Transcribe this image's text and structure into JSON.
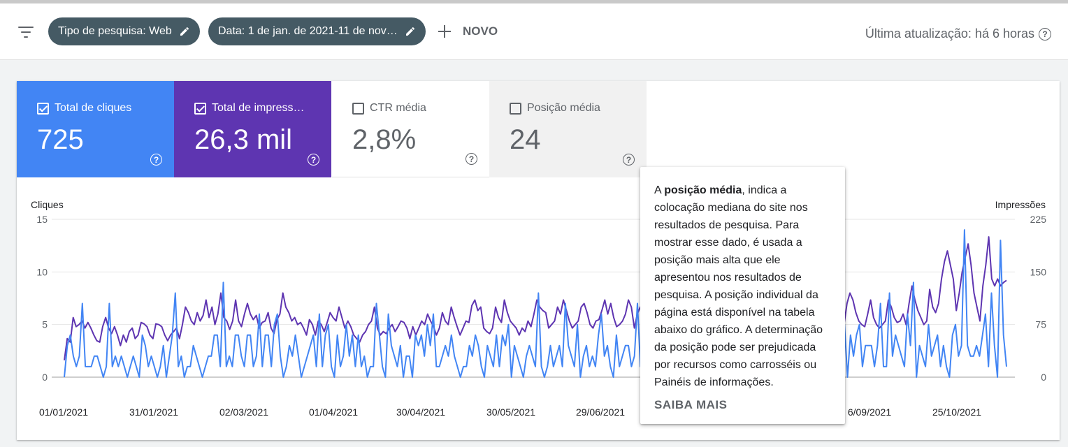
{
  "toolbar": {
    "filter_icon": "filter-list-icon",
    "chips": [
      {
        "label": "Tipo de pesquisa: Web",
        "icon": "pencil-icon"
      },
      {
        "label": "Data: 1 de jan. de 2021-11 de nov…",
        "icon": "pencil-icon"
      }
    ],
    "new_label": "NOVO",
    "last_update": "Última atualização: há 6 horas",
    "help_glyph": "?"
  },
  "metrics": [
    {
      "label": "Total de cliques",
      "value": "725",
      "checked": true,
      "color": "#4285f4",
      "text_color": "#ffffff"
    },
    {
      "label": "Total de impress…",
      "value": "26,3 mil",
      "checked": true,
      "color": "#5e35b1",
      "text_color": "#ffffff"
    },
    {
      "label": "CTR média",
      "value": "2,8%",
      "checked": false,
      "color": "#ffffff",
      "text_color": "#5f6368"
    },
    {
      "label": "Posição média",
      "value": "24",
      "checked": false,
      "color": "#f1f1f1",
      "text_color": "#5f6368"
    }
  ],
  "tooltip": {
    "prefix": "A ",
    "bold": "posição média",
    "line1_rest": ", indica a",
    "lines": [
      "colocação mediana do site nos",
      "resultados de pesquisa. Para",
      "mostrar esse dado, é usada a",
      "posição mais alta que ele",
      "apresentou nos resultados de",
      "pesquisa. A posição individual da",
      "página está disponível na tabela",
      "abaixo do gráfico. A determinação",
      "da posição pode ser prejudicada",
      "por recursos como carrosséis ou",
      "Painéis de informações."
    ],
    "more": "SAIBA MAIS"
  },
  "chart_data": {
    "type": "line",
    "ylabel": "Cliques",
    "y2label": "Impressões",
    "ylim": [
      0,
      15
    ],
    "y2lim": [
      0,
      225
    ],
    "yticks": [
      "0",
      "5",
      "10",
      "15"
    ],
    "y2ticks": [
      "0",
      "75",
      "150",
      "225"
    ],
    "xtick_labels": [
      "01/01/2021",
      "31/01/2021",
      "02/03/2021",
      "01/04/2021",
      "30/04/2021",
      "30/05/2021",
      "29/06/2021",
      "",
      "",
      "6/09/2021",
      "25/10/2021"
    ],
    "grid": true,
    "series": [
      {
        "name": "Cliques",
        "axis": "left",
        "color": "#4285f4",
        "values": [
          0,
          3,
          4,
          2,
          1,
          2,
          7,
          1,
          1,
          1,
          2,
          2,
          1,
          0,
          1,
          7,
          1,
          2,
          1,
          2,
          1,
          0,
          1,
          2,
          1,
          0,
          4,
          3,
          1,
          2,
          1,
          0,
          1,
          3,
          0,
          2,
          4,
          8,
          1,
          2,
          0,
          1,
          1,
          3,
          2,
          1,
          0,
          1,
          2,
          2,
          4,
          4,
          1,
          9,
          1,
          2,
          1,
          4,
          4,
          2,
          1,
          4,
          4,
          1,
          2,
          6,
          1,
          4,
          4,
          1,
          5,
          6,
          2,
          0,
          1,
          3,
          2,
          4,
          2,
          0,
          1,
          2,
          3,
          4,
          1,
          6,
          1,
          4,
          5,
          1,
          0,
          4,
          1,
          2,
          5,
          2,
          4,
          1,
          4,
          1,
          2,
          0,
          1,
          1,
          7,
          4,
          1,
          0,
          6,
          3,
          2,
          1,
          3,
          0,
          2,
          2,
          0,
          4,
          3,
          4,
          2,
          5,
          3,
          6,
          1,
          1,
          2,
          3,
          2,
          4,
          2,
          1,
          0,
          1,
          1,
          3,
          2,
          4,
          3,
          1,
          0,
          3,
          2,
          1,
          4,
          1,
          4,
          3,
          5,
          0,
          3,
          2,
          1,
          0,
          2,
          3,
          2,
          1,
          8,
          1,
          0,
          1,
          3,
          1,
          2,
          3,
          1,
          7,
          3,
          2,
          1,
          5,
          0,
          2,
          3,
          1,
          2,
          1,
          4,
          6,
          2,
          3,
          1,
          0,
          4,
          1,
          2,
          3,
          3,
          1,
          2,
          7,
          1,
          1,
          4,
          1,
          0,
          2,
          3,
          2,
          2,
          5,
          1,
          3,
          1,
          2,
          7,
          2,
          5,
          1,
          0,
          3,
          2,
          4,
          6,
          3,
          1,
          2,
          3,
          2,
          4,
          1,
          7,
          3,
          2,
          0,
          1,
          3,
          2,
          4,
          6,
          3,
          1,
          2,
          1,
          4,
          3,
          2,
          1,
          3,
          0,
          4,
          3,
          1,
          2,
          5,
          2,
          1,
          5,
          3,
          1,
          2,
          0,
          4,
          7,
          3,
          1,
          5,
          4,
          2,
          5,
          0,
          4,
          2,
          4,
          5,
          1,
          3,
          3,
          3,
          1,
          3,
          7,
          1,
          1,
          8,
          2,
          4,
          3,
          2,
          1,
          6,
          3,
          9,
          0,
          3,
          2,
          1,
          5,
          2,
          3,
          4,
          1,
          3,
          1,
          0,
          4,
          5,
          2,
          3,
          14,
          3,
          2,
          2,
          3,
          2,
          4,
          6,
          1,
          8,
          3,
          0,
          13,
          4,
          1
        ]
      },
      {
        "name": "Impressões",
        "axis": "right",
        "color": "#5e35b1",
        "values": [
          24,
          55,
          50,
          85,
          72,
          75,
          80,
          70,
          78,
          70,
          60,
          52,
          50,
          72,
          85,
          70,
          62,
          72,
          60,
          45,
          60,
          50,
          65,
          70,
          55,
          60,
          78,
          76,
          72,
          60,
          55,
          76,
          75,
          72,
          60,
          52,
          60,
          65,
          70,
          55,
          75,
          100,
          92,
          80,
          75,
          92,
          80,
          88,
          110,
          85,
          100,
          75,
          90,
          120,
          85,
          80,
          68,
          80,
          110,
          80,
          72,
          90,
          105,
          90,
          82,
          88,
          70,
          78,
          80,
          92,
          70,
          62,
          82,
          90,
          120,
          100,
          92,
          80,
          85,
          75,
          78,
          70,
          60,
          82,
          75,
          60,
          80,
          75,
          65,
          78,
          92,
          85,
          80,
          100,
          85,
          70,
          80,
          72,
          60,
          55,
          50,
          60,
          65,
          75,
          80,
          100,
          70,
          60,
          65,
          62,
          70,
          75,
          65,
          72,
          80,
          78,
          70,
          55,
          72,
          60,
          70,
          80,
          75,
          90,
          80,
          72,
          60,
          70,
          92,
          80,
          75,
          100,
          85,
          72,
          60,
          70,
          80,
          78,
          102,
          110,
          95,
          100,
          70,
          65,
          62,
          70,
          100,
          85,
          78,
          110,
          92,
          80,
          75,
          70,
          60,
          70,
          65,
          80,
          72,
          90,
          110,
          100,
          95,
          92,
          70,
          75,
          80,
          100,
          90,
          110,
          95,
          80,
          70,
          75,
          80,
          100,
          105,
          92,
          75,
          70,
          80,
          82,
          95,
          110,
          90,
          105,
          85,
          72,
          75,
          80,
          90,
          110,
          100,
          70,
          90,
          100,
          85,
          78,
          112,
          90,
          80,
          70,
          75,
          80,
          95,
          125,
          110,
          92,
          80,
          100,
          72,
          60,
          80,
          75,
          78,
          60,
          72,
          80,
          95,
          110,
          92,
          75,
          80,
          80,
          88,
          72,
          75,
          85,
          100,
          92,
          80,
          70,
          60,
          72,
          85,
          100,
          110,
          92,
          80,
          70,
          85,
          95,
          80,
          75,
          92,
          80,
          70,
          65,
          72,
          90,
          110,
          95,
          80,
          75,
          90,
          100,
          72,
          80,
          85,
          70,
          90,
          110,
          95,
          80,
          75,
          105,
          120,
          110,
          92,
          80,
          75,
          72,
          90,
          110,
          85,
          75,
          70,
          75,
          80,
          110,
          100,
          85,
          78,
          80,
          90,
          75,
          105,
          130,
          110,
          95,
          85,
          75,
          80,
          125,
          100,
          92,
          105,
          140,
          165,
          180,
          160,
          140,
          95,
          120,
          150,
          170,
          190,
          160,
          120,
          100,
          80,
          130,
          160,
          200,
          140,
          130,
          140,
          130,
          135,
          138
        ]
      }
    ]
  }
}
